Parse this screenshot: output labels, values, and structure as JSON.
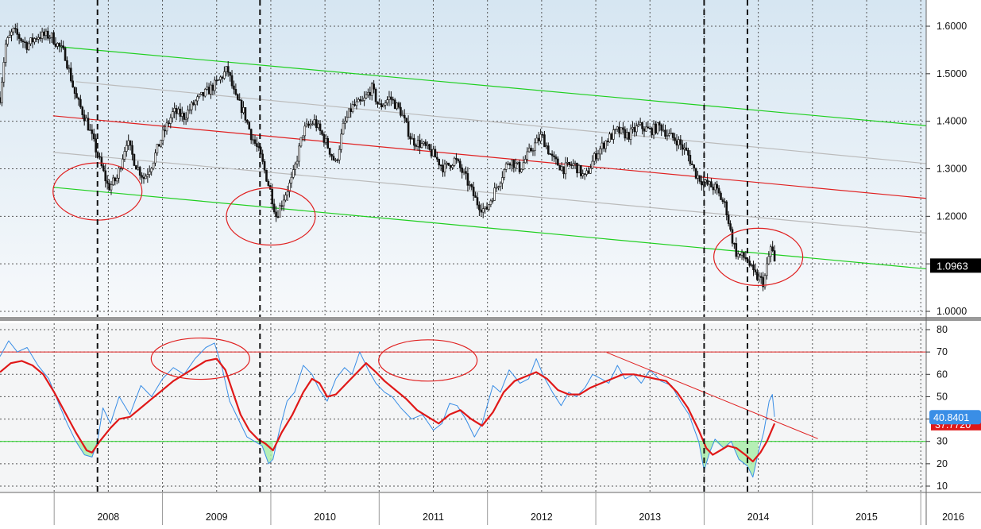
{
  "chart_data": [
    {
      "type": "candlestick",
      "panel": "price",
      "title": "",
      "ylim": [
        0.98,
        1.63
      ],
      "y_ticks": [
        "1.6000",
        "1.5000",
        "1.4000",
        "1.3000",
        "1.2000",
        "1.1000",
        "1.0000"
      ],
      "last_price_label": "1.0963",
      "price_path": [
        [
          2007.5,
          1.45
        ],
        [
          2007.55,
          1.56
        ],
        [
          2007.62,
          1.59
        ],
        [
          2007.75,
          1.56
        ],
        [
          2007.85,
          1.58
        ],
        [
          2007.97,
          1.58
        ],
        [
          2008.1,
          1.54
        ],
        [
          2008.2,
          1.45
        ],
        [
          2008.3,
          1.4
        ],
        [
          2008.4,
          1.33
        ],
        [
          2008.5,
          1.26
        ],
        [
          2008.58,
          1.28
        ],
        [
          2008.67,
          1.36
        ],
        [
          2008.75,
          1.31
        ],
        [
          2008.83,
          1.28
        ],
        [
          2008.9,
          1.31
        ],
        [
          2009.0,
          1.37
        ],
        [
          2009.1,
          1.42
        ],
        [
          2009.2,
          1.41
        ],
        [
          2009.3,
          1.44
        ],
        [
          2009.4,
          1.46
        ],
        [
          2009.5,
          1.48
        ],
        [
          2009.6,
          1.51
        ],
        [
          2009.67,
          1.45
        ],
        [
          2009.75,
          1.42
        ],
        [
          2009.82,
          1.37
        ],
        [
          2009.9,
          1.33
        ],
        [
          2010.0,
          1.25
        ],
        [
          2010.05,
          1.2
        ],
        [
          2010.12,
          1.24
        ],
        [
          2010.2,
          1.28
        ],
        [
          2010.3,
          1.38
        ],
        [
          2010.4,
          1.4
        ],
        [
          2010.5,
          1.36
        ],
        [
          2010.6,
          1.31
        ],
        [
          2010.67,
          1.39
        ],
        [
          2010.75,
          1.43
        ],
        [
          2010.85,
          1.44
        ],
        [
          2010.93,
          1.47
        ],
        [
          2011.0,
          1.43
        ],
        [
          2011.1,
          1.45
        ],
        [
          2011.2,
          1.42
        ],
        [
          2011.3,
          1.36
        ],
        [
          2011.4,
          1.35
        ],
        [
          2011.5,
          1.33
        ],
        [
          2011.6,
          1.3
        ],
        [
          2011.7,
          1.32
        ],
        [
          2011.8,
          1.28
        ],
        [
          2011.9,
          1.23
        ],
        [
          2011.98,
          1.21
        ],
        [
          2012.1,
          1.27
        ],
        [
          2012.2,
          1.32
        ],
        [
          2012.3,
          1.3
        ],
        [
          2012.4,
          1.34
        ],
        [
          2012.5,
          1.37
        ],
        [
          2012.6,
          1.32
        ],
        [
          2012.7,
          1.3
        ],
        [
          2012.8,
          1.31
        ],
        [
          2012.9,
          1.28
        ],
        [
          2013.0,
          1.33
        ],
        [
          2013.1,
          1.36
        ],
        [
          2013.2,
          1.38
        ],
        [
          2013.3,
          1.37
        ],
        [
          2013.4,
          1.39
        ],
        [
          2013.5,
          1.38
        ],
        [
          2013.6,
          1.39
        ],
        [
          2013.67,
          1.37
        ],
        [
          2013.75,
          1.36
        ],
        [
          2013.85,
          1.33
        ],
        [
          2013.92,
          1.29
        ],
        [
          2014.0,
          1.27
        ],
        [
          2014.1,
          1.26
        ],
        [
          2014.2,
          1.22
        ],
        [
          2014.25,
          1.16
        ],
        [
          2014.3,
          1.12
        ],
        [
          2014.4,
          1.11
        ],
        [
          2014.45,
          1.08
        ],
        [
          2014.55,
          1.06
        ],
        [
          2014.62,
          1.14
        ],
        [
          2014.65,
          1.1
        ]
      ],
      "trend_lines": [
        {
          "name": "channel-top",
          "color": "#1fcf1f",
          "p1": [
            2008.05,
            1.5567
          ],
          "p2": [
            2016.05,
            1.3907
          ]
        },
        {
          "name": "upper-mid",
          "color": "#bbbbbb",
          "p1": [
            2008.2,
            1.4833
          ],
          "p2": [
            2016.05,
            1.311
          ]
        },
        {
          "name": "center-line",
          "color": "#e02020",
          "p1": [
            2007.99,
            1.4115
          ],
          "p2": [
            2016.05,
            1.2377
          ]
        },
        {
          "name": "lower-mid",
          "color": "#bbbbbb",
          "p1": [
            2007.99,
            1.3347
          ],
          "p2": [
            2016.05,
            1.1648
          ]
        },
        {
          "name": "channel-bottom",
          "color": "#1fcf1f",
          "p1": [
            2007.99,
            1.261
          ],
          "p2": [
            2016.05,
            1.0895
          ]
        }
      ],
      "circles": [
        [
          2008.4,
          1.2522
        ],
        [
          2010.0,
          1.1997
        ],
        [
          2014.5,
          1.1147
        ]
      ],
      "vertical_markers": [
        2008.4,
        2009.9,
        2014.0,
        2014.4
      ]
    },
    {
      "type": "line",
      "panel": "oscillator",
      "ylim": [
        7,
        83
      ],
      "y_ticks": [
        "80",
        "70",
        "60",
        "50",
        "40",
        "30",
        "20",
        "10"
      ],
      "levels": {
        "upper": 70,
        "lower": 30
      },
      "value_labels": [
        "40.8401",
        "37.7720"
      ],
      "series": [
        {
          "color": "#3a8ee6",
          "points": [
            [
              2007.5,
              68
            ],
            [
              2007.58,
              75
            ],
            [
              2007.66,
              70
            ],
            [
              2007.75,
              72
            ],
            [
              2007.85,
              64
            ],
            [
              2007.95,
              58
            ],
            [
              2008.05,
              46
            ],
            [
              2008.12,
              38
            ],
            [
              2008.2,
              30
            ],
            [
              2008.28,
              24
            ],
            [
              2008.35,
              23
            ],
            [
              2008.4,
              30
            ],
            [
              2008.45,
              45
            ],
            [
              2008.52,
              38
            ],
            [
              2008.6,
              50
            ],
            [
              2008.7,
              42
            ],
            [
              2008.8,
              55
            ],
            [
              2008.9,
              50
            ],
            [
              2009.0,
              58
            ],
            [
              2009.1,
              63
            ],
            [
              2009.2,
              60
            ],
            [
              2009.3,
              67
            ],
            [
              2009.4,
              72
            ],
            [
              2009.48,
              74
            ],
            [
              2009.55,
              63
            ],
            [
              2009.62,
              48
            ],
            [
              2009.7,
              40
            ],
            [
              2009.78,
              32
            ],
            [
              2009.85,
              30
            ],
            [
              2009.92,
              28
            ],
            [
              2009.98,
              20
            ],
            [
              2010.02,
              22
            ],
            [
              2010.08,
              35
            ],
            [
              2010.15,
              48
            ],
            [
              2010.22,
              52
            ],
            [
              2010.3,
              64
            ],
            [
              2010.38,
              60
            ],
            [
              2010.45,
              53
            ],
            [
              2010.52,
              48
            ],
            [
              2010.6,
              58
            ],
            [
              2010.68,
              63
            ],
            [
              2010.75,
              60
            ],
            [
              2010.82,
              70
            ],
            [
              2010.9,
              62
            ],
            [
              2010.97,
              56
            ],
            [
              2011.05,
              52
            ],
            [
              2011.12,
              50
            ],
            [
              2011.2,
              45
            ],
            [
              2011.3,
              40
            ],
            [
              2011.4,
              42
            ],
            [
              2011.5,
              35
            ],
            [
              2011.58,
              38
            ],
            [
              2011.65,
              47
            ],
            [
              2011.72,
              46
            ],
            [
              2011.8,
              40
            ],
            [
              2011.88,
              32
            ],
            [
              2011.95,
              38
            ],
            [
              2012.05,
              55
            ],
            [
              2012.12,
              52
            ],
            [
              2012.2,
              62
            ],
            [
              2012.3,
              56
            ],
            [
              2012.38,
              58
            ],
            [
              2012.45,
              67
            ],
            [
              2012.52,
              59
            ],
            [
              2012.6,
              52
            ],
            [
              2012.68,
              46
            ],
            [
              2012.75,
              52
            ],
            [
              2012.82,
              50
            ],
            [
              2012.9,
              54
            ],
            [
              2012.97,
              60
            ],
            [
              2013.05,
              58
            ],
            [
              2013.12,
              56
            ],
            [
              2013.2,
              64
            ],
            [
              2013.27,
              58
            ],
            [
              2013.35,
              60
            ],
            [
              2013.42,
              56
            ],
            [
              2013.5,
              62
            ],
            [
              2013.6,
              57
            ],
            [
              2013.7,
              55
            ],
            [
              2013.78,
              48
            ],
            [
              2013.86,
              42
            ],
            [
              2013.95,
              30
            ],
            [
              2014.0,
              17
            ],
            [
              2014.05,
              25
            ],
            [
              2014.1,
              31
            ],
            [
              2014.18,
              27
            ],
            [
              2014.25,
              30
            ],
            [
              2014.32,
              22
            ],
            [
              2014.4,
              19
            ],
            [
              2014.45,
              14
            ],
            [
              2014.5,
              25
            ],
            [
              2014.55,
              34
            ],
            [
              2014.6,
              48
            ],
            [
              2014.63,
              51
            ],
            [
              2014.65,
              41
            ]
          ]
        },
        {
          "color": "#e01818",
          "points": [
            [
              2007.5,
              61
            ],
            [
              2007.6,
              65
            ],
            [
              2007.7,
              66
            ],
            [
              2007.8,
              64
            ],
            [
              2007.9,
              60
            ],
            [
              2008.0,
              52
            ],
            [
              2008.1,
              43
            ],
            [
              2008.2,
              34
            ],
            [
              2008.3,
              26
            ],
            [
              2008.35,
              25
            ],
            [
              2008.42,
              30
            ],
            [
              2008.52,
              36
            ],
            [
              2008.6,
              40
            ],
            [
              2008.7,
              41
            ],
            [
              2008.8,
              45
            ],
            [
              2008.9,
              49
            ],
            [
              2009.0,
              53
            ],
            [
              2009.1,
              57
            ],
            [
              2009.2,
              60
            ],
            [
              2009.3,
              63
            ],
            [
              2009.4,
              66
            ],
            [
              2009.5,
              67
            ],
            [
              2009.58,
              62
            ],
            [
              2009.65,
              52
            ],
            [
              2009.72,
              42
            ],
            [
              2009.8,
              35
            ],
            [
              2009.88,
              31
            ],
            [
              2009.95,
              29
            ],
            [
              2010.02,
              26
            ],
            [
              2010.1,
              34
            ],
            [
              2010.2,
              42
            ],
            [
              2010.3,
              52
            ],
            [
              2010.38,
              58
            ],
            [
              2010.45,
              56
            ],
            [
              2010.52,
              50
            ],
            [
              2010.6,
              51
            ],
            [
              2010.7,
              56
            ],
            [
              2010.8,
              61
            ],
            [
              2010.88,
              65
            ],
            [
              2010.97,
              61
            ],
            [
              2011.05,
              57
            ],
            [
              2011.15,
              53
            ],
            [
              2011.25,
              49
            ],
            [
              2011.35,
              44
            ],
            [
              2011.45,
              41
            ],
            [
              2011.55,
              38
            ],
            [
              2011.65,
              42
            ],
            [
              2011.75,
              44
            ],
            [
              2011.85,
              40
            ],
            [
              2011.95,
              37
            ],
            [
              2012.05,
              43
            ],
            [
              2012.15,
              52
            ],
            [
              2012.25,
              57
            ],
            [
              2012.35,
              59
            ],
            [
              2012.45,
              61
            ],
            [
              2012.55,
              58
            ],
            [
              2012.65,
              53
            ],
            [
              2012.75,
              51
            ],
            [
              2012.85,
              51
            ],
            [
              2012.95,
              54
            ],
            [
              2013.05,
              56
            ],
            [
              2013.15,
              58
            ],
            [
              2013.25,
              60
            ],
            [
              2013.35,
              60
            ],
            [
              2013.45,
              59
            ],
            [
              2013.55,
              58
            ],
            [
              2013.65,
              57
            ],
            [
              2013.75,
              52
            ],
            [
              2013.85,
              45
            ],
            [
              2013.95,
              35
            ],
            [
              2014.02,
              27
            ],
            [
              2014.08,
              24
            ],
            [
              2014.15,
              26
            ],
            [
              2014.22,
              28
            ],
            [
              2014.3,
              27
            ],
            [
              2014.38,
              24
            ],
            [
              2014.45,
              21
            ],
            [
              2014.52,
              25
            ],
            [
              2014.58,
              30
            ],
            [
              2014.65,
              38
            ]
          ]
        }
      ],
      "trend_lines": [
        {
          "name": "rsi-downtrend",
          "color": "#e02020",
          "p1": [
            2013.1,
            69.8
          ],
          "p2": [
            2015.05,
            31.2
          ]
        }
      ],
      "ellipses": [
        [
          2009.35,
          67.0
        ],
        [
          2011.45,
          66.2
        ]
      ]
    }
  ],
  "x_axis": {
    "labels": [
      "2008",
      "2009",
      "2010",
      "2011",
      "2012",
      "2013",
      "2014",
      "2015",
      "2016"
    ]
  }
}
